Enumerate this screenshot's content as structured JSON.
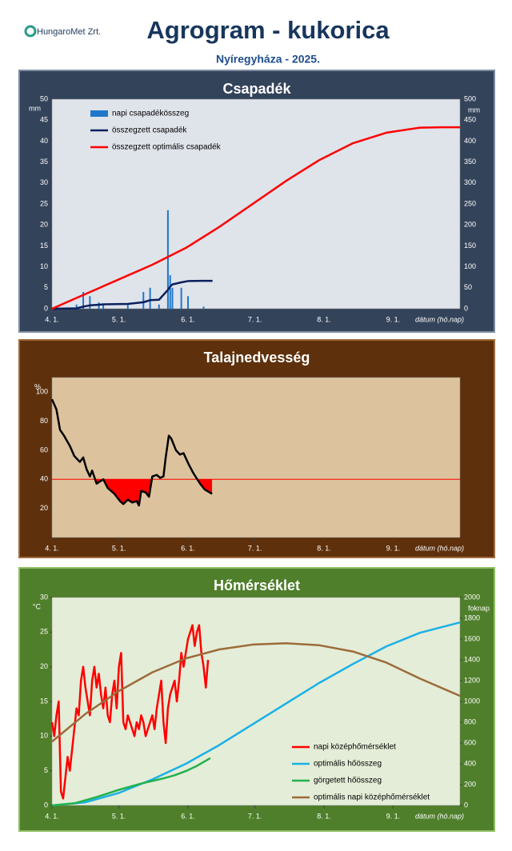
{
  "header": {
    "logo": "HungaroMet Zrt.",
    "title": "Agrogram - kukorica",
    "subtitle": "Nyíregyháza  - 2025."
  },
  "chart_data": [
    {
      "type": "bar",
      "title": "Csapadék",
      "x_label": "dátum (hó.nap)",
      "y_unit": "mm",
      "y2_unit": "mm",
      "xlim": [
        0,
        183
      ],
      "xticks": [
        {
          "value": 0,
          "label": "4. 1."
        },
        {
          "value": 30,
          "label": "5. 1."
        },
        {
          "value": 61,
          "label": "6. 1."
        },
        {
          "value": 91,
          "label": "7. 1."
        },
        {
          "value": 122,
          "label": "8. 1."
        },
        {
          "value": 153,
          "label": "9. 1."
        }
      ],
      "ylim": [
        0,
        50
      ],
      "yticks": [
        0,
        5,
        10,
        15,
        20,
        25,
        30,
        35,
        40,
        45,
        50
      ],
      "y2lim": [
        0,
        500
      ],
      "y2ticks": [
        0,
        50,
        100,
        150,
        200,
        250,
        300,
        350,
        400,
        450,
        500
      ],
      "legend": "upper left",
      "series": [
        {
          "name": "napi csapadékösszeg",
          "type": "bar",
          "color": "#1f77c9",
          "x": [
            11,
            14,
            17,
            21,
            23,
            34,
            41,
            44,
            48,
            52,
            53,
            54,
            58,
            61,
            68
          ],
          "values": [
            1,
            4,
            3,
            1.5,
            1,
            1,
            4,
            5,
            1,
            23.5,
            8,
            5,
            5,
            3,
            0.5
          ]
        },
        {
          "name": "összegzett csapadék",
          "type": "line",
          "axis": "y2",
          "color": "#0a1f5c",
          "width": 2.5,
          "x": [
            0,
            11,
            14,
            17,
            21,
            23,
            34,
            41,
            44,
            48,
            52,
            53,
            54,
            58,
            61,
            68,
            72
          ],
          "values": [
            0,
            1,
            5,
            8,
            9.5,
            10.5,
            11.5,
            15.5,
            20.5,
            21.5,
            45,
            53,
            58,
            63,
            66,
            66.5,
            66.5
          ]
        },
        {
          "name": "összegzett optimális csapadék",
          "type": "line",
          "axis": "y2",
          "color": "#ff0000",
          "width": 2.5,
          "x": [
            0,
            15,
            30,
            45,
            60,
            75,
            90,
            105,
            120,
            135,
            150,
            165,
            175,
            183
          ],
          "values": [
            0,
            35,
            70,
            105,
            145,
            195,
            250,
            305,
            355,
            395,
            420,
            432,
            433,
            433
          ]
        }
      ]
    },
    {
      "type": "line",
      "title": "Talajnedvesség",
      "x_label": "dátum (hó.nap)",
      "y_unit": "%",
      "xlim": [
        0,
        183
      ],
      "xticks": [
        {
          "value": 0,
          "label": "4. 1."
        },
        {
          "value": 30,
          "label": "5. 1."
        },
        {
          "value": 61,
          "label": "6. 1."
        },
        {
          "value": 91,
          "label": "7. 1."
        },
        {
          "value": 122,
          "label": "8. 1."
        },
        {
          "value": 153,
          "label": "9. 1."
        }
      ],
      "ylim": [
        0,
        110
      ],
      "yticks": [
        20,
        40,
        60,
        80,
        100
      ],
      "reference_line": {
        "value": 40,
        "color": "#ff0000"
      },
      "series": [
        {
          "type": "line",
          "color": "#000000",
          "width": 2.5,
          "x": [
            0,
            2,
            3.6,
            5.4,
            8,
            10,
            12.5,
            14,
            15.5,
            17,
            18,
            20,
            23,
            25,
            28,
            30.5,
            32,
            34,
            36,
            38,
            39,
            40,
            42,
            43.5,
            45,
            47,
            48.5,
            50,
            51,
            52.4,
            53.5,
            55.6,
            57.4,
            59,
            61.4,
            63.5,
            66.4,
            68.5,
            71.8
          ],
          "values": [
            95,
            88,
            74,
            70,
            63,
            56,
            52,
            55,
            47,
            42,
            46,
            37,
            40,
            34,
            30,
            25,
            23,
            26,
            24,
            25,
            22,
            32,
            31,
            28,
            42,
            43,
            41,
            42,
            55,
            70,
            68,
            60,
            57,
            58,
            50,
            44,
            37,
            33,
            30
          ]
        }
      ]
    },
    {
      "type": "line",
      "title": "Hőmérséklet",
      "x_label": "dátum (hó.nap)",
      "y_unit": "°C",
      "y2_unit": "foknap",
      "xlim": [
        0,
        183
      ],
      "xticks": [
        {
          "value": 0,
          "label": "4. 1."
        },
        {
          "value": 30,
          "label": "5. 1."
        },
        {
          "value": 61,
          "label": "6. 1."
        },
        {
          "value": 91,
          "label": "7. 1."
        },
        {
          "value": 122,
          "label": "8. 1."
        },
        {
          "value": 153,
          "label": "9. 1."
        }
      ],
      "ylim": [
        0,
        30
      ],
      "yticks": [
        0,
        5,
        10,
        15,
        20,
        25,
        30
      ],
      "y2lim": [
        0,
        2000
      ],
      "y2ticks": [
        0,
        200,
        400,
        600,
        800,
        1000,
        1200,
        1400,
        1600,
        1800,
        2000
      ],
      "legend": "lower right",
      "series": [
        {
          "name": "napi középhőmérséklet",
          "type": "line",
          "color": "#ff0000",
          "width": 2.5,
          "x": [
            0,
            1,
            2,
            3,
            4,
            5,
            6,
            7,
            8,
            9,
            10,
            11,
            12,
            13,
            14,
            15,
            16,
            17,
            18,
            19,
            20,
            21,
            22,
            23,
            24,
            25,
            26,
            27,
            28,
            29,
            30,
            31,
            32,
            33,
            34,
            35,
            36,
            37,
            38,
            39,
            40,
            41,
            42,
            43,
            44,
            45,
            46,
            47,
            48,
            49,
            50,
            51,
            52,
            53,
            54,
            55,
            56,
            57,
            58,
            59,
            60,
            61,
            62,
            63,
            64,
            65,
            66,
            67,
            68,
            69,
            70
          ],
          "values": [
            12,
            10,
            13,
            15,
            2,
            1,
            4,
            7,
            5,
            8,
            11,
            14,
            13,
            18,
            20,
            17,
            15,
            13,
            18,
            20,
            17,
            19,
            16,
            14,
            17,
            13,
            12,
            16,
            18,
            14,
            20,
            22,
            12,
            11,
            13,
            12,
            11,
            10,
            12,
            11,
            13,
            12,
            10,
            11,
            12,
            13,
            11,
            14,
            16,
            18,
            12,
            9,
            14,
            16,
            17,
            18,
            15,
            18,
            22,
            20,
            22,
            24,
            25,
            26,
            23,
            25,
            26,
            22,
            20,
            17,
            21
          ]
        },
        {
          "name": "optimális hőösszeg",
          "type": "line",
          "axis": "y2",
          "color": "#1ab0e8",
          "width": 2.5,
          "x": [
            0,
            15,
            30,
            45,
            60,
            75,
            90,
            105,
            120,
            135,
            150,
            165,
            183
          ],
          "values": [
            0,
            30,
            120,
            250,
            400,
            580,
            780,
            980,
            1180,
            1360,
            1530,
            1660,
            1760
          ]
        },
        {
          "name": "görgetett hőösszeg",
          "type": "line",
          "axis": "y2",
          "color": "#22b14c",
          "width": 2.5,
          "x": [
            0,
            10,
            20,
            30,
            40,
            50,
            55,
            60,
            65,
            71
          ],
          "values": [
            0,
            20,
            80,
            150,
            210,
            260,
            290,
            330,
            380,
            455
          ]
        },
        {
          "name": "optimális napi középhőmérséklet",
          "type": "line",
          "color": "#9c6b3a",
          "width": 2.5,
          "x": [
            0,
            15,
            30,
            45,
            60,
            75,
            90,
            105,
            120,
            135,
            150,
            165,
            183
          ],
          "values": [
            9.2,
            13.2,
            16.5,
            19.2,
            21.2,
            22.5,
            23.2,
            23.4,
            23.1,
            22.2,
            20.6,
            18.3,
            15.8
          ]
        }
      ]
    }
  ]
}
